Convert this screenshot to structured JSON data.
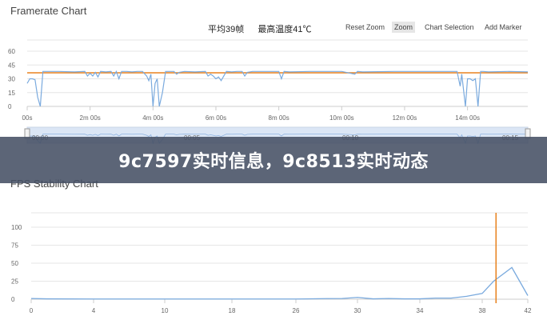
{
  "banner": {
    "text": "9c7597实时信息，9c8513实时动态"
  },
  "framerate": {
    "title": "Framerate Chart",
    "stats": {
      "avg": "平均39帧",
      "max_temp": "最高温度41℃"
    },
    "toolbar": {
      "reset_zoom": "Reset Zoom",
      "zoom": "Zoom",
      "chart_selection": "Chart Selection",
      "add_marker": "Add Marker"
    },
    "navigator_labels": [
      "00:00",
      "00:05",
      "00:10",
      "00:15"
    ]
  },
  "stability": {
    "title": "FPS Stability Chart"
  },
  "chart_data": [
    {
      "type": "line",
      "title": "Framerate Chart",
      "ylim": [
        0,
        60
      ],
      "yticks": [
        0,
        15,
        30,
        45,
        60
      ],
      "xlim_seconds": [
        0,
        955
      ],
      "xtick_values": [
        0,
        120,
        240,
        360,
        480,
        600,
        720,
        840
      ],
      "xtick_labels": [
        "00s",
        "2m 00s",
        "4m 00s",
        "6m 00s",
        "8m 00s",
        "10m 00s",
        "12m 00s",
        "14m 00s"
      ],
      "reference_line": {
        "value": 39,
        "color": "#e8821e"
      },
      "series_color": "#7aaade",
      "grid": true,
      "x": [
        0,
        5,
        10,
        15,
        20,
        25,
        30,
        40,
        60,
        90,
        110,
        115,
        120,
        125,
        130,
        135,
        140,
        150,
        160,
        165,
        170,
        175,
        180,
        190,
        200,
        210,
        220,
        228,
        232,
        236,
        240,
        244,
        248,
        252,
        258,
        264,
        270,
        280,
        285,
        290,
        300,
        320,
        340,
        345,
        350,
        355,
        360,
        365,
        370,
        380,
        390,
        400,
        410,
        415,
        420,
        430,
        460,
        470,
        480,
        485,
        490,
        500,
        540,
        600,
        625,
        630,
        640,
        700,
        780,
        820,
        823,
        826,
        829,
        832,
        836,
        840,
        845,
        850,
        855,
        860,
        865,
        870,
        880,
        920,
        955
      ],
      "y": [
        25,
        30,
        30,
        29,
        10,
        0,
        38,
        38,
        38,
        37.5,
        38,
        33,
        36,
        33,
        37,
        32,
        38,
        37.5,
        38,
        33,
        38,
        30,
        38,
        38,
        37.5,
        38,
        38,
        33,
        28,
        35,
        0,
        25,
        30,
        0,
        15,
        38,
        38,
        38,
        35,
        37,
        38,
        37.5,
        38,
        33,
        35,
        33,
        30,
        32,
        28,
        38,
        37.5,
        38,
        38,
        33,
        37,
        38,
        38,
        38,
        38,
        30,
        38,
        37.5,
        38,
        38,
        35,
        38,
        37.5,
        38,
        38,
        38,
        30,
        22,
        35,
        20,
        0,
        30,
        30,
        28,
        30,
        0,
        38,
        38,
        37.5,
        38,
        37.5
      ]
    },
    {
      "type": "line",
      "title": "FPS Stability Chart",
      "ylim": [
        0,
        120
      ],
      "yticks": [
        0,
        25,
        50,
        75,
        100
      ],
      "xtick_labels": [
        "0",
        "4",
        "10",
        "18",
        "26",
        "30",
        "34",
        "38",
        "42"
      ],
      "series_color": "#7aaade",
      "marker_line": {
        "x": 39,
        "color": "#e8821e"
      },
      "grid": true,
      "x": [
        0,
        1,
        4,
        10,
        18,
        26,
        28,
        29,
        30,
        31,
        32,
        33,
        34,
        35,
        36,
        37,
        38,
        39,
        40.6,
        42
      ],
      "y": [
        1,
        0.5,
        0.3,
        0.3,
        0.3,
        0.3,
        0.8,
        1,
        2.5,
        0.5,
        1,
        0.5,
        0.5,
        1.5,
        1.5,
        4,
        8,
        25,
        44,
        5
      ]
    }
  ]
}
